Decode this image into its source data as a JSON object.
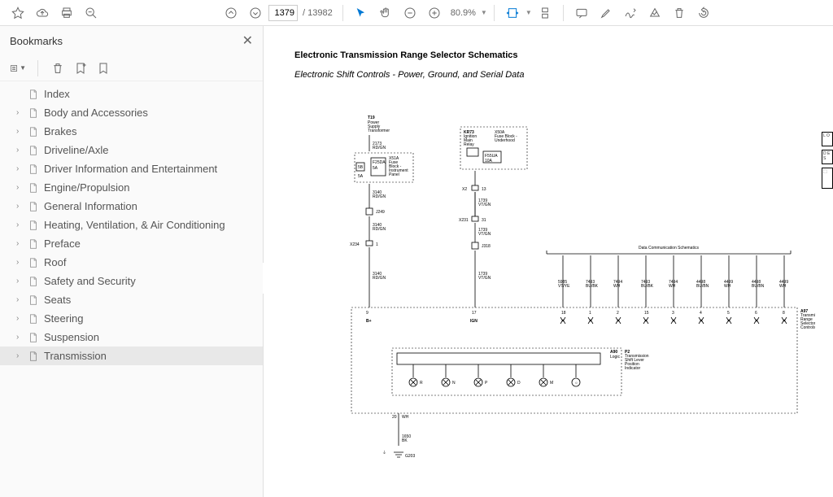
{
  "toolbar": {
    "page_current": "1379",
    "page_total": "13982",
    "zoom": "80.9%"
  },
  "sidebar": {
    "title": "Bookmarks",
    "items": [
      {
        "label": "Index",
        "expandable": false,
        "selected": false
      },
      {
        "label": "Body and Accessories",
        "expandable": true,
        "selected": false
      },
      {
        "label": "Brakes",
        "expandable": true,
        "selected": false
      },
      {
        "label": "Driveline/Axle",
        "expandable": true,
        "selected": false
      },
      {
        "label": "Driver Information and Entertainment",
        "expandable": true,
        "selected": false
      },
      {
        "label": "Engine/Propulsion",
        "expandable": true,
        "selected": false
      },
      {
        "label": "General Information",
        "expandable": true,
        "selected": false
      },
      {
        "label": "Heating, Ventilation, & Air Conditioning",
        "expandable": true,
        "selected": false
      },
      {
        "label": "Preface",
        "expandable": true,
        "selected": false
      },
      {
        "label": "Roof",
        "expandable": true,
        "selected": false
      },
      {
        "label": "Safety and Security",
        "expandable": true,
        "selected": false
      },
      {
        "label": "Seats",
        "expandable": true,
        "selected": false
      },
      {
        "label": "Steering",
        "expandable": true,
        "selected": false
      },
      {
        "label": "Suspension",
        "expandable": true,
        "selected": false
      },
      {
        "label": "Transmission",
        "expandable": true,
        "selected": true
      }
    ]
  },
  "document": {
    "title": "Electronic Transmission Range Selector Schematics",
    "subtitle": "Electronic Shift Controls - Power, Ground, and Serial Data"
  },
  "schematic": {
    "left_block": {
      "ref": "T19",
      "desc": "Power Supply Transformer",
      "wire1": "2173 RD/GN",
      "fuse": "F25DA 5A",
      "sub": "X51A Fuse Block - Instrument Panel",
      "amp": "5A",
      "c_ref": "5B",
      "wire2": "3140 RD/GN",
      "conn1": "J249",
      "wire3": "3140 RD/GN",
      "conn2": "X234",
      "pin": "1",
      "wire4": "3140 RD/GN"
    },
    "mid_block": {
      "ref": "KR73",
      "desc": "Ignition Main Relay",
      "sub": "X50A Fuse Block - Underhood",
      "fuse": "F55UA 10A",
      "conn": "X2",
      "pin": "13",
      "wire1": "1739 VT/GN",
      "conn2": "X231",
      "pin2": "31",
      "wire2": "1739 VT/GN",
      "conn3": "J318",
      "wire3": "1739 VT/GN"
    },
    "comm_header": "Data Communication Schematics",
    "busses": [
      {
        "id": "5985",
        "color": "VT/YE",
        "pin": "18"
      },
      {
        "id": "7493",
        "color": "BU/BK",
        "pin": "1"
      },
      {
        "id": "7494",
        "color": "WH",
        "pin": "2"
      },
      {
        "id": "7493",
        "color": "BU/BK",
        "pin": "15"
      },
      {
        "id": "7494",
        "color": "WH",
        "pin": "3"
      },
      {
        "id": "4498",
        "color": "BU/BN",
        "pin": "4"
      },
      {
        "id": "4499",
        "color": "WH",
        "pin": "5"
      },
      {
        "id": "4498",
        "color": "BU/BN",
        "pin": "6"
      },
      {
        "id": "4499",
        "color": "WH",
        "pin": "8"
      }
    ],
    "main_module": {
      "ref": "A97",
      "desc": "Transmission Range Selector Controls"
    },
    "indicator": {
      "ref": "P2",
      "desc": "Transmission Shift Lever Position Indicator",
      "logic_ref": "A90",
      "logic": "Logic",
      "positions": [
        "R",
        "N",
        "P",
        "D",
        "M"
      ]
    },
    "bottom": {
      "pin_b": "9",
      "label_b": "B+",
      "pin_ign": "17",
      "label_ign": "IGN",
      "wire_out": "WH",
      "pin_out": "20",
      "gnd_wire": "1650 BK",
      "gnd": "G203"
    }
  },
  "colors": {
    "accent": "#0078d4",
    "text": "#333333",
    "muted": "#666666"
  }
}
